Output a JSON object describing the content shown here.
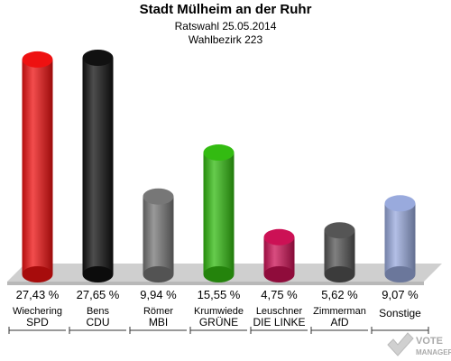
{
  "header": {
    "title": "Stadt Mülheim an der Ruhr",
    "subtitle": "Ratswahl 25.05.2014",
    "district": "Wahlbezirk 223"
  },
  "chart_data": {
    "type": "bar",
    "categories": [
      "SPD",
      "CDU",
      "MBI",
      "GRÜNE",
      "DIE LINKE",
      "AfD",
      "Sonstige"
    ],
    "candidates": [
      "Wiechering",
      "Bens",
      "Römer",
      "Krumwiede",
      "Leuschner",
      "Zimmerman",
      ""
    ],
    "values": [
      27.43,
      27.65,
      9.94,
      15.55,
      4.75,
      5.62,
      9.07
    ],
    "value_labels": [
      "27,43 %",
      "27,65 %",
      "9,94 %",
      "15,55 %",
      "4,75 %",
      "5,62 %",
      "9,07 %"
    ],
    "colors": [
      "#ee1111",
      "#111111",
      "#777777",
      "#33bb11",
      "#cc1155",
      "#555555",
      "#99aadd"
    ],
    "ylim": [
      0,
      27.65
    ]
  },
  "watermark": {
    "line1": "VOTE",
    "line2": "MANAGER"
  }
}
